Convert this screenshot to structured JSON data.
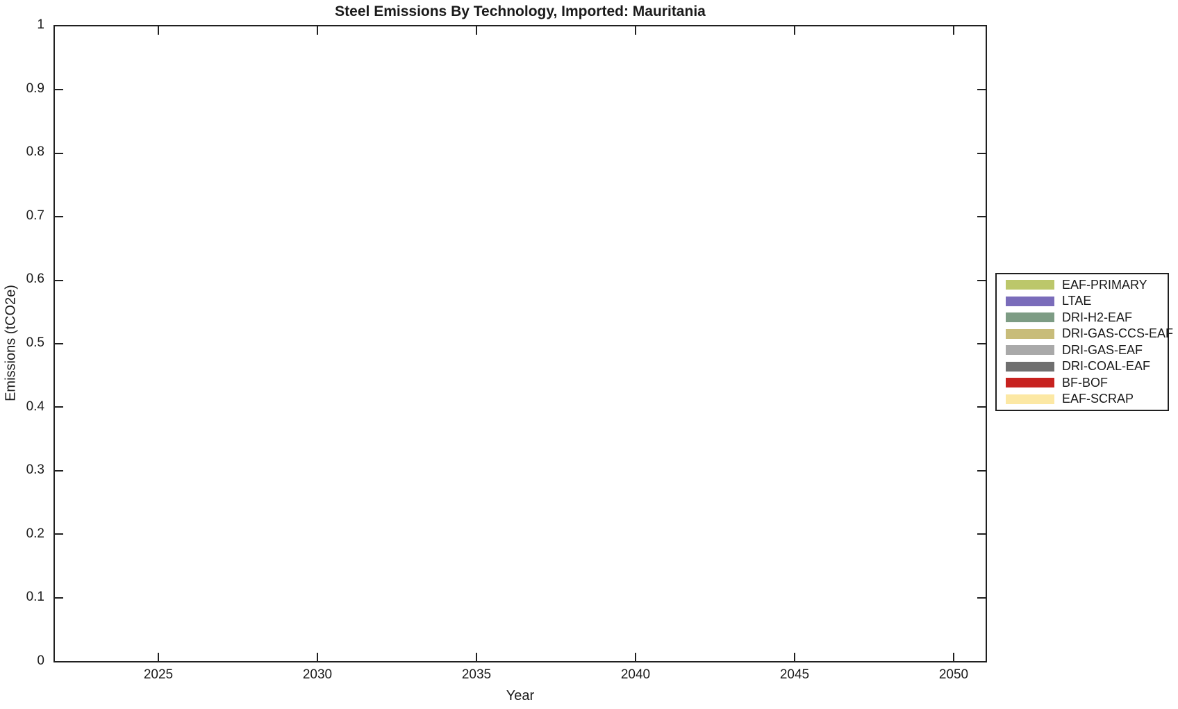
{
  "figure": {
    "background_color": "#ffffff",
    "axis_line_color": "#202020",
    "text_color": "#1a1a1a"
  },
  "chart_data": {
    "type": "area",
    "title": "Steel Emissions By Technology, Imported: Mauritania",
    "xlabel": "Year",
    "ylabel": "Emissions (tCO2e)",
    "x_tick_labels": [
      "2025",
      "2030",
      "2035",
      "2040",
      "2045",
      "2050"
    ],
    "y_tick_labels": [
      "1",
      "0.9",
      "0.8",
      "0.7",
      "0.6",
      "0.5",
      "0.4",
      "0.3",
      "0.2",
      "0.1",
      "0"
    ],
    "ylim": [
      0,
      1
    ],
    "grid": false,
    "legend_position": "outside-right",
    "plot_area_empty": true,
    "series": [
      {
        "name": "EAF-PRIMARY",
        "color": "#bcc76a",
        "values": []
      },
      {
        "name": "LTAE",
        "color": "#7a6cba",
        "values": []
      },
      {
        "name": "DRI-H2-EAF",
        "color": "#7d9c84",
        "values": []
      },
      {
        "name": "DRI-GAS-CCS-EAF",
        "color": "#c8bc7a",
        "values": []
      },
      {
        "name": "DRI-GAS-EAF",
        "color": "#a9a9a9",
        "values": []
      },
      {
        "name": "DRI-COAL-EAF",
        "color": "#6f6f6f",
        "values": []
      },
      {
        "name": "BF-BOF",
        "color": "#c7221f",
        "values": []
      },
      {
        "name": "EAF-SCRAP",
        "color": "#fce8a4",
        "values": []
      }
    ],
    "layout_hints": {
      "x_tick_percents": [
        11.12,
        28.21,
        45.3,
        62.39,
        79.48,
        96.57
      ],
      "y_tick_percents": [
        10,
        20,
        30,
        40,
        50,
        60,
        70,
        80,
        90
      ]
    }
  }
}
